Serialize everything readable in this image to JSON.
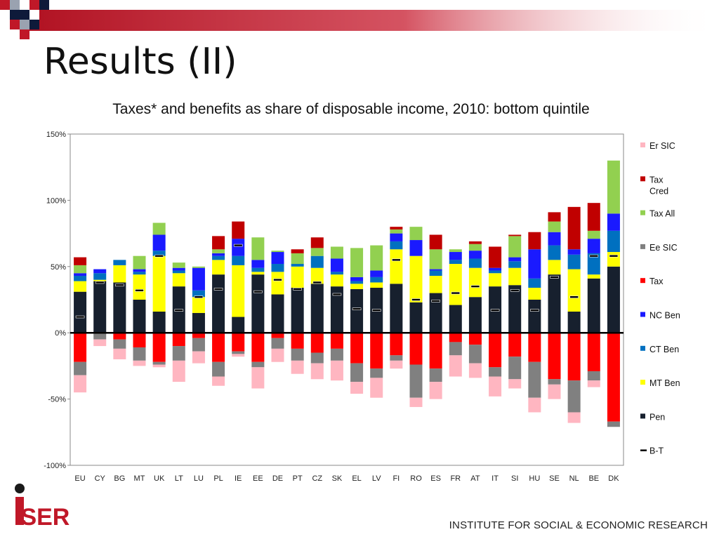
{
  "slide": {
    "title": "Results (II)",
    "footer": "INSTITUTE FOR SOCIAL & ECONOMIC RESEARCH",
    "logo_text": "iSER"
  },
  "colors": {
    "Er SIC": "#ffb6c1",
    "Tax Cred": "#c00000",
    "Tax All": "#92d050",
    "Ee SIC": "#808080",
    "Tax": "#ff0000",
    "NC Ben": "#1a1aff",
    "CT Ben": "#0070c0",
    "MT Ben": "#ffff00",
    "Pen": "#17202e",
    "B-T": "#000000"
  },
  "chart_data": {
    "type": "bar",
    "stacked": true,
    "title": "Taxes* and benefits as share of disposable income, 2010: bottom quintile",
    "ylim": [
      -100,
      150
    ],
    "yticks": [
      -100,
      -50,
      0,
      50,
      100,
      150
    ],
    "ytick_labels": [
      "-100%",
      "-50%",
      "0%",
      "50%",
      "100%",
      "150%"
    ],
    "grid": false,
    "legend_position": "right",
    "legend": [
      "Er SIC",
      "Tax Cred",
      "Tax All",
      "Ee SIC",
      "Tax",
      "NC Ben",
      "CT Ben",
      "MT Ben",
      "Pen",
      "B-T"
    ],
    "categories": [
      "EU",
      "CY",
      "BG",
      "MT",
      "UK",
      "LT",
      "LU",
      "PL",
      "IE",
      "EE",
      "DE",
      "PT",
      "CZ",
      "SK",
      "EL",
      "LV",
      "FI",
      "RO",
      "ES",
      "FR",
      "AT",
      "IT",
      "SI",
      "HU",
      "SE",
      "NL",
      "BE",
      "DK"
    ],
    "positive_series": [
      {
        "name": "Pen",
        "values": [
          31,
          39,
          38,
          25,
          16,
          35,
          15,
          44,
          12,
          44,
          29,
          34,
          37,
          35,
          33,
          34,
          37,
          23,
          30,
          21,
          27,
          35,
          36,
          25,
          44,
          16,
          41,
          50
        ]
      },
      {
        "name": "MT Ben",
        "values": [
          8,
          1,
          13,
          19,
          42,
          10,
          12,
          11,
          39,
          2,
          17,
          16,
          12,
          9,
          4,
          4,
          26,
          35,
          13,
          31,
          22,
          10,
          13,
          9,
          11,
          32,
          3,
          11
        ]
      },
      {
        "name": "CT Ben",
        "values": [
          4,
          5,
          4,
          2,
          4,
          2,
          5,
          3,
          7,
          3,
          6,
          2,
          9,
          2,
          2,
          4,
          6,
          0,
          4,
          3,
          7,
          2,
          5,
          7,
          11,
          11,
          16,
          16
        ]
      },
      {
        "name": "NC Ben",
        "values": [
          2,
          3,
          0,
          2,
          12,
          2,
          17,
          2,
          13,
          6,
          9,
          0,
          0,
          10,
          3,
          5,
          6,
          12,
          1,
          6,
          6,
          2,
          3,
          22,
          10,
          4,
          11,
          13
        ]
      },
      {
        "name": "Tax All",
        "values": [
          6,
          0,
          0,
          10,
          9,
          4,
          1,
          3,
          0,
          17,
          1,
          8,
          6,
          9,
          22,
          19,
          3,
          10,
          15,
          2,
          5,
          0,
          16,
          0,
          8,
          0,
          6,
          40
        ]
      },
      {
        "name": "Tax Cred",
        "values": [
          6,
          0,
          0,
          0,
          0,
          0,
          0,
          10,
          13,
          0,
          0,
          3,
          8,
          0,
          0,
          0,
          2,
          0,
          11,
          0,
          2,
          16,
          1,
          13,
          7,
          32,
          21,
          0
        ]
      }
    ],
    "negative_series": [
      {
        "name": "Tax",
        "values": [
          -22,
          0,
          -5,
          -11,
          -22,
          -10,
          -4,
          -22,
          -14,
          -22,
          -4,
          -12,
          -15,
          -12,
          -23,
          -27,
          -17,
          -24,
          -27,
          -7,
          -9,
          -26,
          -18,
          -22,
          -35,
          -36,
          -29,
          -67
        ]
      },
      {
        "name": "Ee SIC",
        "values": [
          -10,
          -5,
          -7,
          -10,
          -2,
          -11,
          -10,
          -11,
          -2,
          -4,
          -8,
          -9,
          -8,
          -9,
          -14,
          -7,
          -4,
          -25,
          -10,
          -10,
          -14,
          -7,
          -17,
          -27,
          -4,
          -24,
          -7,
          -4
        ]
      },
      {
        "name": "Er SIC",
        "values": [
          -13,
          -5,
          -8,
          -4,
          -2,
          -16,
          -9,
          -7,
          -2,
          -16,
          -10,
          -10,
          -12,
          -15,
          -9,
          -15,
          -6,
          -7,
          -13,
          -16,
          -11,
          -15,
          -7,
          -11,
          -11,
          -8,
          -5,
          0
        ]
      }
    ],
    "B-T": [
      12,
      38,
      36,
      32,
      58,
      17,
      27,
      33,
      66,
      31,
      40,
      33,
      38,
      29,
      18,
      17,
      55,
      25,
      24,
      30,
      35,
      17,
      32,
      17,
      42,
      27,
      58,
      58
    ]
  }
}
